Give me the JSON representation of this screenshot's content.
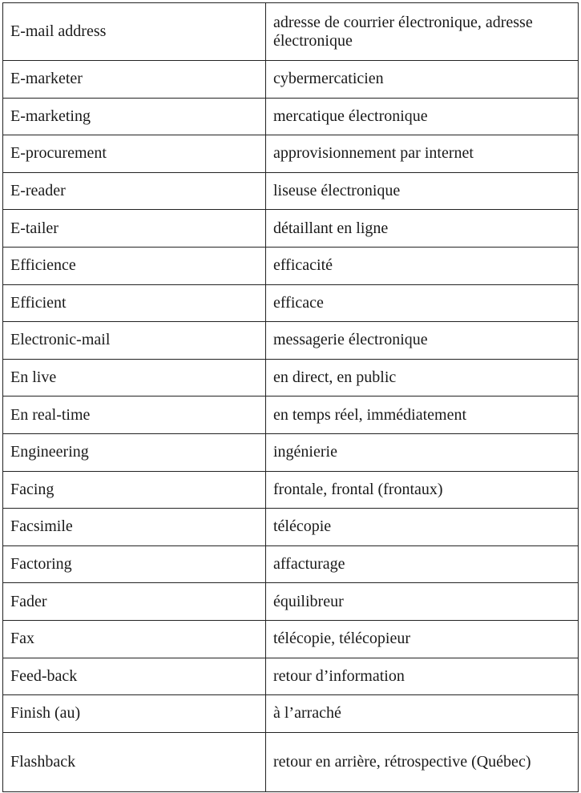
{
  "rows": [
    {
      "term": "E-mail address",
      "translation": "adresse de courrier électronique, adresse électronique"
    },
    {
      "term": "E-marketer",
      "translation": "cybermercaticien"
    },
    {
      "term": "E-marketing",
      "translation": "mercatique électronique"
    },
    {
      "term": "E-procurement",
      "translation": "approvisionnement par internet"
    },
    {
      "term": "E-reader",
      "translation": "liseuse électronique"
    },
    {
      "term": "E-tailer",
      "translation": "détaillant en ligne"
    },
    {
      "term": "Efficience",
      "translation": "efficacité"
    },
    {
      "term": "Efficient",
      "translation": "efficace"
    },
    {
      "term": "Electronic-mail",
      "translation": "messagerie électronique"
    },
    {
      "term": "En live",
      "translation": "en direct, en public"
    },
    {
      "term": "En real-time",
      "translation": "en temps réel, immédiatement"
    },
    {
      "term": "Engineering",
      "translation": "ingénierie"
    },
    {
      "term": "Facing",
      "translation": "frontale, frontal (frontaux)"
    },
    {
      "term": "Facsimile",
      "translation": "télécopie"
    },
    {
      "term": "Factoring",
      "translation": "affacturage"
    },
    {
      "term": "Fader",
      "translation": "équilibreur"
    },
    {
      "term": "Fax",
      "translation": "télécopie, télécopieur"
    },
    {
      "term": "Feed-back",
      "translation": "retour d’information"
    },
    {
      "term": "Finish (au)",
      "translation": "à l’arraché"
    },
    {
      "term": "Flashback",
      "translation": "retour en arrière, rétrospective (Québec)"
    }
  ]
}
